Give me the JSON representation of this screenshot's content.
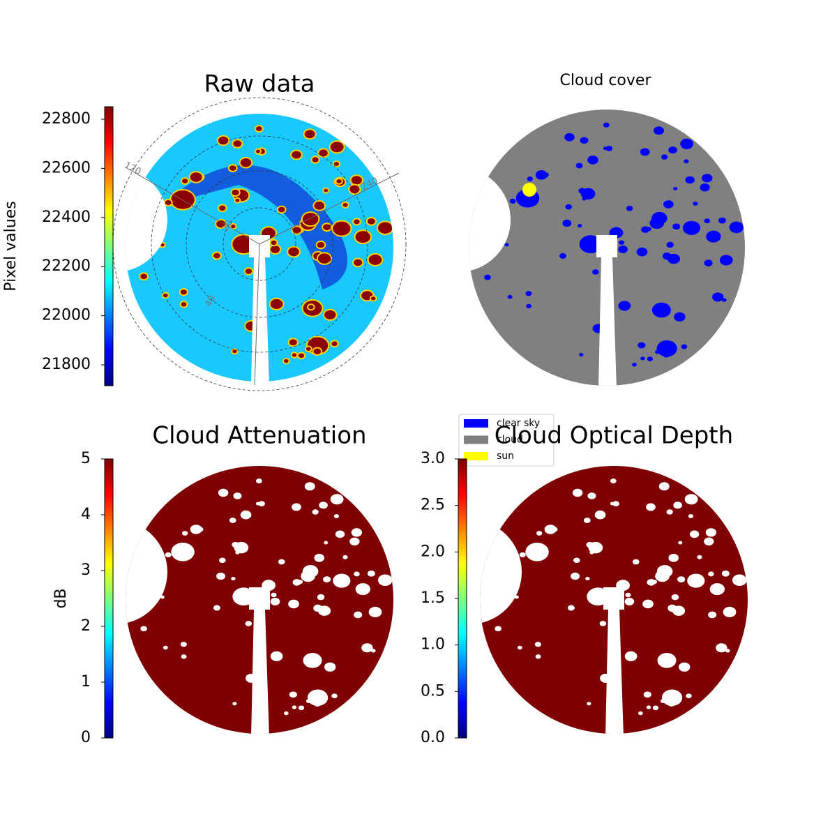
{
  "chart_data": [
    {
      "type": "image",
      "title": "Raw data",
      "colormap": "jet",
      "colorbar": {
        "label": "Pixel values",
        "lim": [
          21715,
          22851
        ],
        "ticks": [
          21800,
          22000,
          22200,
          22400,
          22600,
          22800
        ]
      },
      "annotations": [
        "120",
        "240",
        "20",
        "40"
      ]
    },
    {
      "type": "image",
      "title": "Cloud cover",
      "legend": [
        {
          "name": "clear sky",
          "color": "#0000ff"
        },
        {
          "name": "cloud",
          "color": "#808080"
        },
        {
          "name": "sun",
          "color": "#ffff00"
        }
      ]
    },
    {
      "type": "image",
      "title": "Cloud Attenuation",
      "colormap": "jet",
      "colorbar": {
        "label": "dB",
        "lim": [
          0,
          5
        ],
        "ticks": [
          0,
          1,
          2,
          3,
          4,
          5
        ]
      }
    },
    {
      "type": "image",
      "title": "Cloud Optical Depth",
      "colormap": "jet",
      "colorbar": {
        "lim": [
          0,
          3
        ],
        "ticks": [
          {
            "value": 0,
            "label": "0.0"
          },
          {
            "value": 0.5,
            "label": "0.5"
          },
          {
            "value": 1,
            "label": "1.0"
          },
          {
            "value": 1.5,
            "label": "1.5"
          },
          {
            "value": 2,
            "label": "2.0"
          },
          {
            "value": 2.5,
            "label": "2.5"
          },
          {
            "value": 3,
            "label": "3.0"
          }
        ]
      }
    }
  ]
}
